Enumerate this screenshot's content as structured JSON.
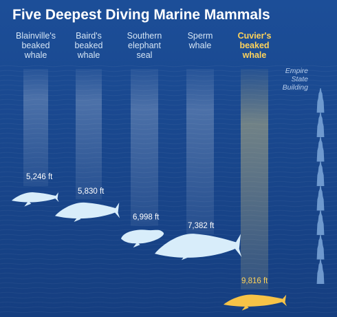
{
  "chart_data": {
    "type": "bar",
    "title": "Five Deepest Diving Marine Mammals",
    "categories": [
      {
        "lines": [
          "Blainville's",
          "beaked",
          "whale"
        ]
      },
      {
        "lines": [
          "Baird's",
          "beaked",
          "whale"
        ]
      },
      {
        "lines": [
          "Southern",
          "elephant",
          "seal"
        ]
      },
      {
        "lines": [
          "Sperm",
          "whale"
        ]
      },
      {
        "lines": [
          "Cuvier's",
          "beaked",
          "whale"
        ]
      }
    ],
    "values": [
      5246,
      5830,
      6998,
      7382,
      9816
    ],
    "value_labels": [
      "5,246 ft",
      "5,830 ft",
      "6,998 ft",
      "7,382 ft",
      "9,816 ft"
    ],
    "highlight_index": 4,
    "reference": {
      "lines": [
        "Empire",
        "State",
        "Building"
      ],
      "icon": "empire-state-building-icon",
      "count": 8
    },
    "unit": "ft",
    "colors": {
      "ocean_top": "#1c4e98",
      "ocean_bottom": "#153e80",
      "text": "#ffffff",
      "label": "#d6e6f6",
      "highlight": "#ffd35a",
      "animal": "#d8edfa",
      "highlight_animal": "#f7c347",
      "building": "#7ea8da"
    }
  }
}
